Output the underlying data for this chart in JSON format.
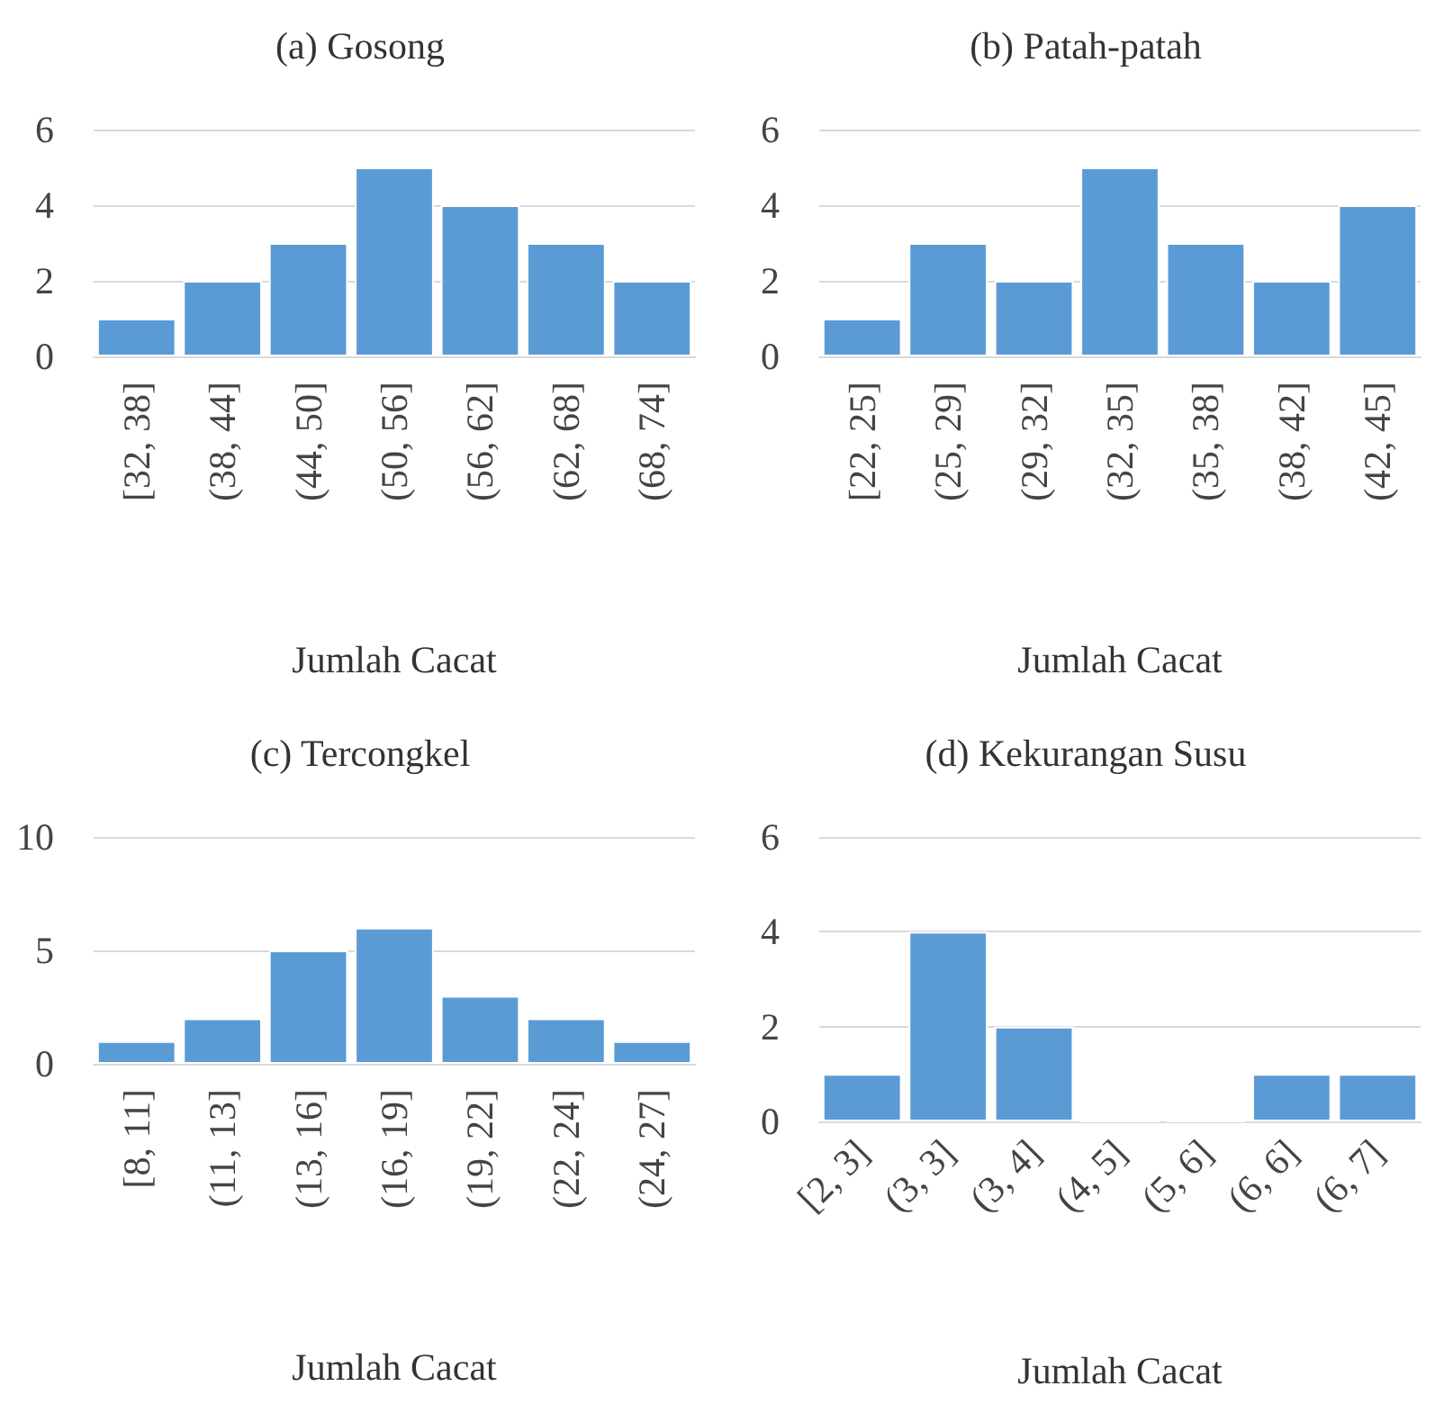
{
  "chart_data": [
    {
      "type": "bar",
      "title": "(a) Gosong",
      "xlabel": "Jumlah Cacat",
      "categories": [
        "[32, 38]",
        "(38, 44]",
        "(44, 50]",
        "(50, 56]",
        "(56, 62]",
        "(62, 68]",
        "(68, 74]"
      ],
      "values": [
        1,
        2,
        3,
        5,
        4,
        3,
        2
      ],
      "color": "#5b9bd5",
      "ylim": [
        0,
        6
      ],
      "yticks": [
        0,
        2,
        4,
        6
      ],
      "grid": "y"
    },
    {
      "type": "bar",
      "title": "(b) Patah-patah",
      "xlabel": "Jumlah Cacat",
      "categories": [
        "[22, 25]",
        "(25, 29]",
        "(29, 32]",
        "(32, 35]",
        "(35, 38]",
        "(38, 42]",
        "(42, 45]"
      ],
      "values": [
        1,
        3,
        2,
        5,
        3,
        2,
        4
      ],
      "color": "#5b9bd5",
      "ylim": [
        0,
        6
      ],
      "yticks": [
        0,
        2,
        4,
        6
      ],
      "grid": "y"
    },
    {
      "type": "bar",
      "title": "(c) Tercongkel",
      "xlabel": "Jumlah Cacat",
      "categories": [
        "[8, 11]",
        "(11, 13]",
        "(13, 16]",
        "(16, 19]",
        "(19, 22]",
        "(22, 24]",
        "(24, 27]"
      ],
      "values": [
        1,
        2,
        5,
        6,
        3,
        2,
        1
      ],
      "color": "#5b9bd5",
      "ylim": [
        0,
        10
      ],
      "yticks": [
        0,
        5,
        10
      ],
      "grid": "y"
    },
    {
      "type": "bar",
      "title": "(d) Kekurangan Susu",
      "xlabel": "Jumlah Cacat",
      "categories": [
        "[2, 3]",
        "(3, 3]",
        "(3, 4]",
        "(4, 5]",
        "(5, 6]",
        "(6, 6]",
        "(6, 7]"
      ],
      "values": [
        1,
        4,
        2,
        0,
        0,
        1,
        1
      ],
      "color": "#5b9bd5",
      "ylim": [
        0,
        6
      ],
      "yticks": [
        0,
        2,
        4,
        6
      ],
      "grid": "y"
    }
  ]
}
